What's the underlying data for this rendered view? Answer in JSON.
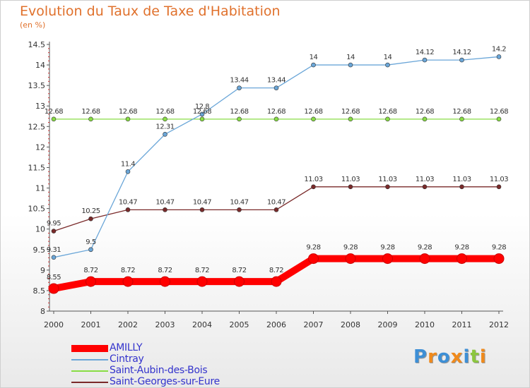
{
  "chart_data": {
    "type": "line",
    "title": "Evolution du Taux de Taxe d'Habitation",
    "subtitle": "(en %)",
    "categories": [
      "2000",
      "2001",
      "2002",
      "2003",
      "2004",
      "2005",
      "2006",
      "2007",
      "2008",
      "2009",
      "2010",
      "2011",
      "2012"
    ],
    "ylim": [
      8,
      14.5
    ],
    "yticks": [
      "8",
      "8.5",
      "9",
      "9.5",
      "10",
      "10.5",
      "11",
      "11.5",
      "12",
      "12.5",
      "13",
      "13.5",
      "14",
      "14.5"
    ],
    "grid": false,
    "legend_position": "bottom-left",
    "series": [
      {
        "name": "AMILLY",
        "color": "#ff0000",
        "values": [
          8.55,
          8.72,
          8.72,
          8.72,
          8.72,
          8.72,
          8.72,
          9.28,
          9.28,
          9.28,
          9.28,
          9.28,
          9.28
        ],
        "labels": [
          "8.55",
          "8.72",
          "8.72",
          "8.72",
          "8.72",
          "8.72",
          "8.72",
          "9.28",
          "9.28",
          "9.28",
          "9.28",
          "9.28",
          "9.28"
        ]
      },
      {
        "name": "Cintray",
        "color": "#6aa6d8",
        "values": [
          9.31,
          9.5,
          11.4,
          12.31,
          12.8,
          13.44,
          13.44,
          14,
          14,
          14,
          14.12,
          14.12,
          14.2
        ],
        "labels": [
          "9.31",
          "9.5",
          "11.4",
          "12.31",
          "12.8",
          "13.44",
          "13.44",
          "14",
          "14",
          "14",
          "14.12",
          "14.12",
          "14.2"
        ]
      },
      {
        "name": "Saint-Aubin-des-Bois",
        "color": "#88dd44",
        "values": [
          12.68,
          12.68,
          12.68,
          12.68,
          12.68,
          12.68,
          12.68,
          12.68,
          12.68,
          12.68,
          12.68,
          12.68,
          12.68
        ],
        "labels": [
          "12.68",
          "12.68",
          "12.68",
          "12.68",
          "12.68",
          "12.68",
          "12.68",
          "12.68",
          "12.68",
          "12.68",
          "12.68",
          "12.68",
          "12.68"
        ]
      },
      {
        "name": "Saint-Georges-sur-Eure",
        "color": "#7a2a2a",
        "values": [
          9.95,
          10.25,
          10.47,
          10.47,
          10.47,
          10.47,
          10.47,
          11.03,
          11.03,
          11.03,
          11.03,
          11.03,
          11.03
        ],
        "labels": [
          "9.95",
          "10.25",
          "10.47",
          "10.47",
          "10.47",
          "10.47",
          "10.47",
          "11.03",
          "11.03",
          "11.03",
          "11.03",
          "11.03",
          "11.03"
        ]
      }
    ]
  },
  "logo": {
    "text": "Proxiti",
    "colors": [
      "#3d8fd6",
      "#f08a1c",
      "#3d8fd6",
      "#f08a1c",
      "#3d8fd6",
      "#8cc63f",
      "#f08a1c"
    ]
  }
}
